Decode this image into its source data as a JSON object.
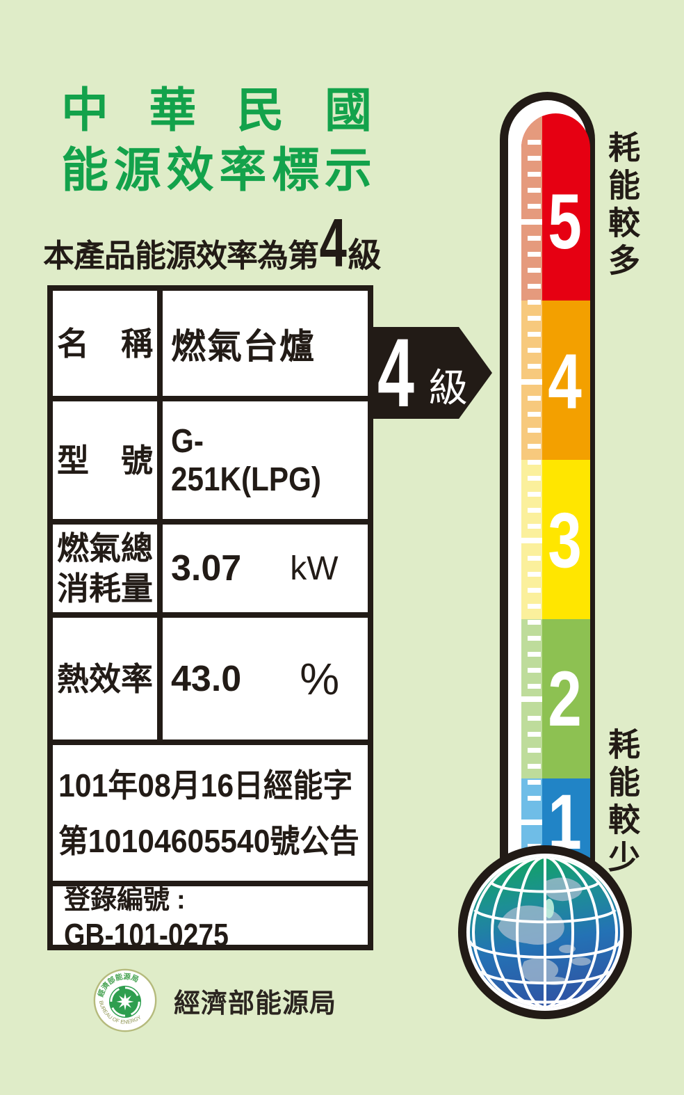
{
  "title": {
    "line1": "中華民國",
    "line2": "能源效率標示"
  },
  "subtitle": {
    "prefix": "本產品能源效率為第",
    "level": "4",
    "suffix": "級"
  },
  "table": {
    "rows": [
      {
        "label": "名稱",
        "value": "燃氣台爐"
      },
      {
        "label": "型號",
        "value": "G-251K(LPG)"
      },
      {
        "label": "燃氣總消耗量",
        "value": "3.07",
        "unit": "kW"
      },
      {
        "label": "熱效率",
        "value": "43.0",
        "unit": "%"
      }
    ],
    "announcement": {
      "line1": "101年08月16日經能字",
      "line2": "第10104605540號公告"
    },
    "registration": {
      "label": "登錄編號",
      "separator": ":",
      "value": "GB-101-0275"
    }
  },
  "pointer": {
    "level": "4",
    "suffix": "級"
  },
  "scale": {
    "top_label": "耗能較多",
    "bottom_label": "耗能較少",
    "levels": [
      {
        "number": "5",
        "color": "#e60012",
        "stripe": "#e59a7d"
      },
      {
        "number": "4",
        "color": "#f3a000",
        "stripe": "#f7c97d"
      },
      {
        "number": "3",
        "color": "#ffe600",
        "stripe": "#fbf09c"
      },
      {
        "number": "2",
        "color": "#8dc152",
        "stripe": "#bedc9b"
      },
      {
        "number": "1",
        "color": "#2184c6",
        "stripe": "#6fbde7"
      }
    ]
  },
  "footer": {
    "agency": "經濟部能源局",
    "seal_text_top": "經濟部能源局",
    "seal_text_bottom": "BUREAU OF ENERGY"
  },
  "colors": {
    "background": "#dfecc8",
    "title_green": "#13a24b",
    "ink": "#221b16",
    "globe_green": "#10a55c",
    "globe_blue": "#2f55a4"
  }
}
